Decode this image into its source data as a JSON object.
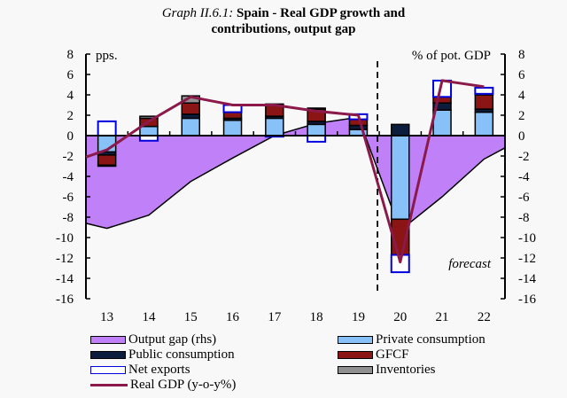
{
  "chart_data": {
    "type": "bar",
    "title_prefix": "Graph II.6.1:",
    "title_main": "Spain - Real GDP growth and",
    "title_line2": "contributions, output gap",
    "ylabel_left": "pps.",
    "ylabel_right": "% of pot. GDP",
    "annotation": "forecast",
    "ylim": [
      -16,
      8
    ],
    "yticks": [
      8,
      6,
      4,
      2,
      0,
      -2,
      -4,
      -6,
      -8,
      -10,
      -12,
      -14,
      -16
    ],
    "categories": [
      "13",
      "14",
      "15",
      "16",
      "17",
      "18",
      "19",
      "20",
      "21",
      "22"
    ],
    "forecast_start_index": 7,
    "series": [
      {
        "name": "Private consumption",
        "color": "#88c0f8",
        "values": [
          -1.6,
          0.9,
          1.7,
          1.5,
          1.7,
          1.1,
          0.6,
          -8.2,
          2.5,
          2.3
        ]
      },
      {
        "name": "Public consumption",
        "color": "#0c1c3c",
        "values": [
          -0.3,
          0.0,
          0.4,
          0.2,
          0.2,
          0.3,
          0.4,
          1.1,
          0.7,
          0.3
        ]
      },
      {
        "name": "GFCF",
        "color": "#8b1414",
        "values": [
          -1.0,
          0.8,
          1.1,
          0.6,
          1.1,
          1.2,
          0.6,
          -3.5,
          0.6,
          1.4
        ]
      },
      {
        "name": "Inventories",
        "color": "#909090",
        "values": [
          -0.1,
          0.2,
          0.7,
          0.0,
          0.1,
          0.1,
          0.0,
          0.0,
          0.0,
          0.1
        ]
      },
      {
        "name": "Net exports",
        "color": "#ffffff",
        "edge": "#0000dd",
        "values": [
          1.4,
          -0.5,
          0.0,
          0.7,
          -0.1,
          -0.6,
          0.5,
          -1.7,
          1.6,
          0.6
        ]
      }
    ],
    "real_gdp": {
      "name": "Real GDP (y-o-y%)",
      "color": "#8b1a4a",
      "values": [
        -1.4,
        1.4,
        3.8,
        3.0,
        3.0,
        2.4,
        2.0,
        -12.4,
        5.4,
        4.8
      ],
      "left_edge": -2.1
    },
    "output_gap": {
      "name": "Output gap (rhs)",
      "color": "#c080f8",
      "values": [
        -9.1,
        -7.8,
        -4.5,
        -2.2,
        0.0,
        1.2,
        1.8,
        -9.3,
        -6.0,
        -2.3
      ],
      "left_edge": -8.6,
      "right_edge": -1.2
    },
    "legend": [
      {
        "label": "Output gap (rhs)",
        "kind": "area",
        "color": "#c080f8"
      },
      {
        "label": "Private consumption",
        "kind": "bar",
        "color": "#88c0f8"
      },
      {
        "label": "Public consumption",
        "kind": "bar",
        "color": "#0c1c3c"
      },
      {
        "label": "GFCF",
        "kind": "bar",
        "color": "#8b1414"
      },
      {
        "label": "Net exports",
        "kind": "bar",
        "color": "#ffffff",
        "edge": "#0000dd"
      },
      {
        "label": "Inventories",
        "kind": "bar",
        "color": "#909090"
      },
      {
        "label": "Real GDP (y-o-y%)",
        "kind": "line",
        "color": "#8b1a4a"
      }
    ]
  }
}
